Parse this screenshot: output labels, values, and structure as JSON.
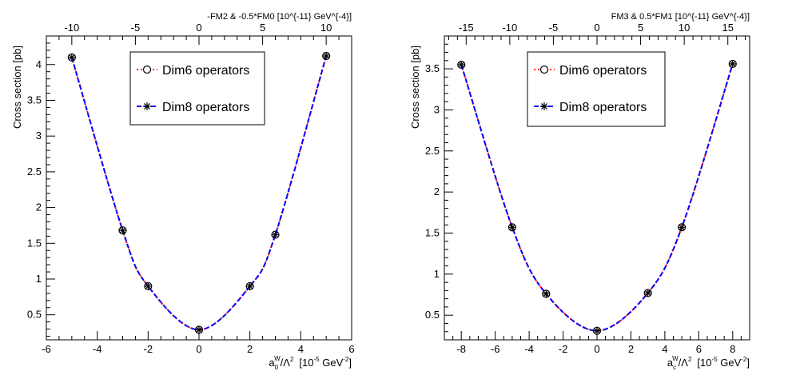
{
  "chart_data": [
    {
      "type": "line",
      "xlabel_main": "a",
      "xlabel_sub": "0",
      "xlabel_sup": "W",
      "xlabel_rest": "/Λ",
      "xlabel_rest_sup": "2",
      "xlabel_units": "[10",
      "xlabel_units_sup": "-5",
      "xlabel_units_mid": " GeV",
      "xlabel_units_sup2": "-2",
      "xlabel_units_end": "]",
      "ylabel": "Cross section [pb]",
      "top_axis_label": "-FM2 & -0.5*FM0 [10^{-11} GeV^{-4}]",
      "xlim": [
        -6,
        6
      ],
      "ylim": [
        0.15,
        4.4
      ],
      "x_ticks": [
        -6,
        -4,
        -2,
        0,
        2,
        4,
        6
      ],
      "y_ticks": [
        0.5,
        1,
        1.5,
        2,
        2.5,
        3,
        3.5,
        4
      ],
      "top_xlim": [
        -12,
        12
      ],
      "top_ticks": [
        -10,
        -5,
        0,
        5,
        10
      ],
      "legend": [
        "Dim6 operators",
        "Dim8 operators"
      ],
      "series": [
        {
          "name": "Dim6 operators",
          "color": "#ff0000",
          "marker": "circle",
          "x": [
            -5,
            -3,
            -2,
            0,
            2,
            3,
            5
          ],
          "y": [
            4.1,
            1.68,
            0.9,
            0.29,
            0.9,
            1.62,
            4.12
          ]
        },
        {
          "name": "Dim8 operators",
          "color": "#0000ff",
          "marker": "star",
          "x": [
            -5,
            -3,
            -2,
            0,
            2,
            3,
            5
          ],
          "y": [
            4.1,
            1.68,
            0.9,
            0.29,
            0.9,
            1.62,
            4.12
          ]
        }
      ]
    },
    {
      "type": "line",
      "xlabel_main": "a",
      "xlabel_sub": "c",
      "xlabel_sup": "W",
      "xlabel_rest": "/Λ",
      "xlabel_rest_sup": "2",
      "xlabel_units": "[10",
      "xlabel_units_sup": "-5",
      "xlabel_units_mid": " GeV",
      "xlabel_units_sup2": "-2",
      "xlabel_units_end": "]",
      "ylabel": "Cross section [pb]",
      "top_axis_label": "FM3 & 0.5*FM1 [10^{-11} GeV^{-4}]",
      "xlim": [
        -9,
        9
      ],
      "ylim": [
        0.2,
        3.9
      ],
      "x_ticks": [
        -8,
        -6,
        -4,
        -2,
        0,
        2,
        4,
        6,
        8
      ],
      "y_ticks": [
        0.5,
        1,
        1.5,
        2,
        2.5,
        3,
        3.5
      ],
      "top_xlim": [
        -17.5,
        17.5
      ],
      "top_ticks": [
        -15,
        -10,
        -5,
        0,
        5,
        10,
        15
      ],
      "legend": [
        "Dim6 operators",
        "Dim8 operators"
      ],
      "series": [
        {
          "name": "Dim6 operators",
          "color": "#ff0000",
          "marker": "circle",
          "x": [
            -8,
            -5,
            -3,
            0,
            3,
            5,
            8
          ],
          "y": [
            3.55,
            1.57,
            0.76,
            0.31,
            0.77,
            1.57,
            3.56
          ]
        },
        {
          "name": "Dim8 operators",
          "color": "#0000ff",
          "marker": "star",
          "x": [
            -8,
            -5,
            -3,
            0,
            3,
            5,
            8
          ],
          "y": [
            3.55,
            1.57,
            0.76,
            0.31,
            0.77,
            1.57,
            3.56
          ]
        }
      ]
    }
  ]
}
